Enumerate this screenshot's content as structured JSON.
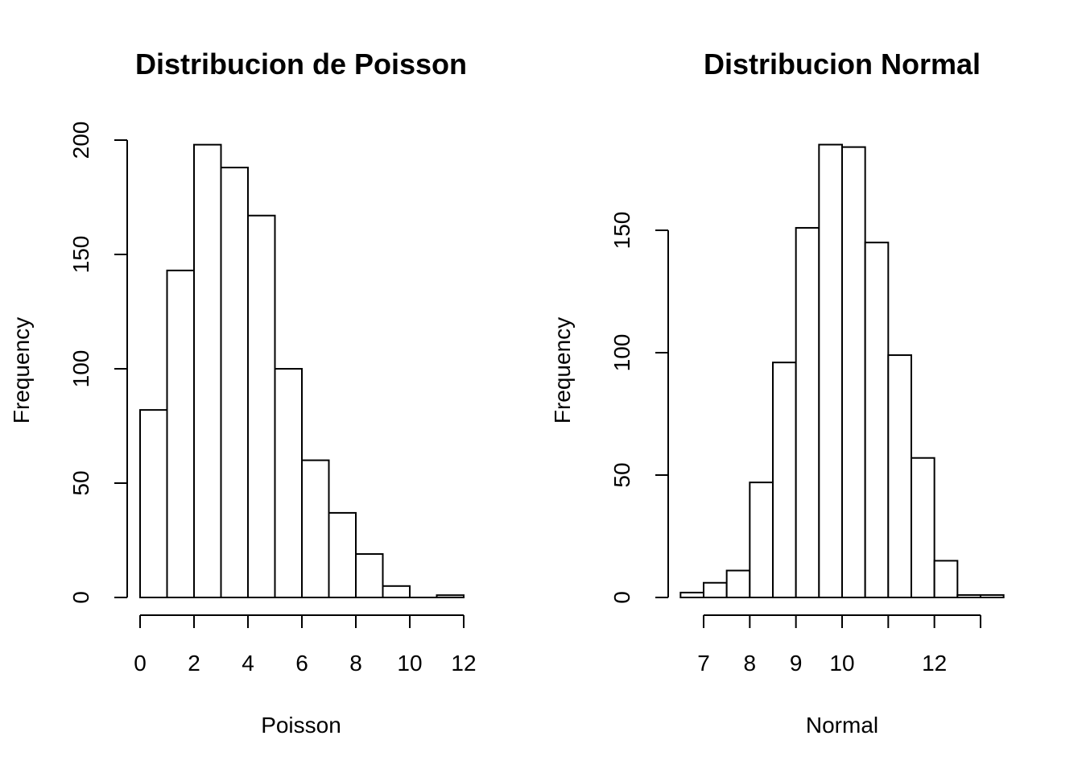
{
  "chart_data": [
    {
      "type": "bar",
      "title": "Distribucion de Poisson",
      "xlabel": "Poisson",
      "ylabel": "Frequency",
      "bins": [
        [
          0,
          1
        ],
        [
          1,
          2
        ],
        [
          2,
          3
        ],
        [
          3,
          4
        ],
        [
          4,
          5
        ],
        [
          5,
          6
        ],
        [
          6,
          7
        ],
        [
          7,
          8
        ],
        [
          8,
          9
        ],
        [
          9,
          10
        ],
        [
          10,
          11
        ],
        [
          11,
          12
        ]
      ],
      "values": [
        82,
        143,
        198,
        188,
        167,
        100,
        60,
        37,
        19,
        5,
        0,
        1
      ],
      "xlim": [
        0,
        12
      ],
      "ylim": [
        0,
        200
      ],
      "x_ticks": [
        0,
        2,
        4,
        6,
        8,
        10,
        12
      ],
      "x_tick_labels": [
        "0",
        "2",
        "4",
        "6",
        "8",
        "10",
        "12"
      ],
      "y_ticks": [
        0,
        50,
        100,
        150,
        200
      ],
      "y_tick_labels": [
        "0",
        "50",
        "100",
        "150",
        "200"
      ],
      "grid": false
    },
    {
      "type": "bar",
      "title": "Distribucion Normal",
      "xlabel": "Normal",
      "ylabel": "Frequency",
      "bins": [
        [
          6.5,
          7
        ],
        [
          7,
          7.5
        ],
        [
          7.5,
          8
        ],
        [
          8,
          8.5
        ],
        [
          8.5,
          9
        ],
        [
          9,
          9.5
        ],
        [
          9.5,
          10
        ],
        [
          10,
          10.5
        ],
        [
          10.5,
          11
        ],
        [
          11,
          11.5
        ],
        [
          11.5,
          12
        ],
        [
          12,
          12.5
        ],
        [
          12.5,
          13
        ],
        [
          13,
          13.5
        ]
      ],
      "values": [
        2,
        6,
        11,
        47,
        96,
        151,
        185,
        184,
        145,
        99,
        57,
        15,
        1,
        1
      ],
      "xlim": [
        7,
        13
      ],
      "ylim": [
        0,
        150
      ],
      "x_ticks": [
        7,
        8,
        9,
        10,
        11,
        12,
        13
      ],
      "x_tick_labels": [
        "7",
        "8",
        "9",
        "10",
        "",
        "12",
        ""
      ],
      "y_ticks": [
        0,
        50,
        100,
        150
      ],
      "y_tick_labels": [
        "0",
        "50",
        "100",
        "150"
      ],
      "grid": false
    }
  ]
}
